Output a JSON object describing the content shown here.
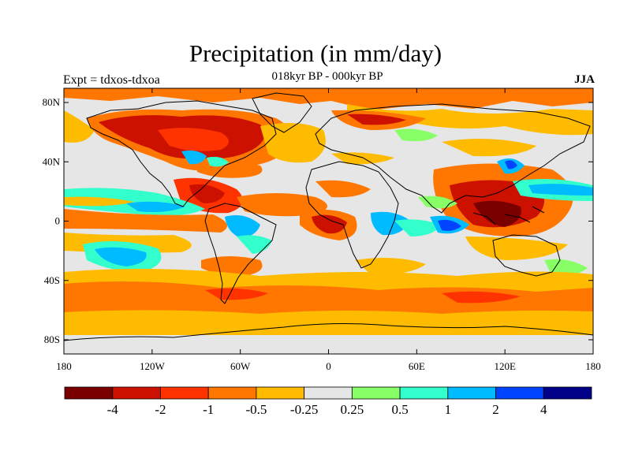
{
  "map": {
    "title": "Precipitation (in mm/day)",
    "subtitle": "018kyr BP - 000kyr BP",
    "left_label": "Expt = tdxos-tdxoa",
    "right_label": "JJA",
    "lat_ticks": [
      "80N",
      "40N",
      "0",
      "40S",
      "80S"
    ],
    "lon_ticks": [
      "180",
      "120W",
      "60W",
      "0",
      "60E",
      "120E",
      "180"
    ],
    "legend": {
      "colors": [
        "#7a0000",
        "#cc1100",
        "#ff3300",
        "#ff7700",
        "#ffbb00",
        "#e6e6e6",
        "#88ff66",
        "#33ffcc",
        "#00bbff",
        "#0044ff",
        "#000088"
      ],
      "labels": [
        "-4",
        "-2",
        "-1",
        "-0.5",
        "-0.25",
        "0.25",
        "0.5",
        "1",
        "2",
        "4"
      ]
    }
  }
}
